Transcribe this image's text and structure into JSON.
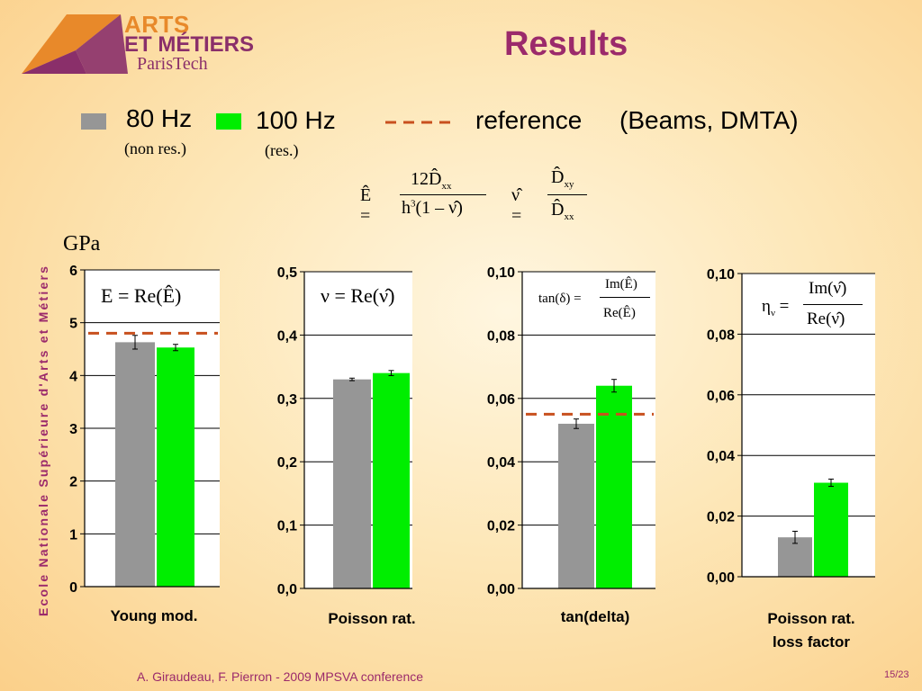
{
  "slide": {
    "title": "Results",
    "logo": {
      "line1": "ARTS",
      "line2": "ET MÉTIERS",
      "line3": "ParisTech"
    },
    "sidebar_text": "Ecole Nationale Supérieure d'Arts et Métiers",
    "footer": "A. Giraudeau, F. Pierron - 2009 MPSVA conference",
    "page_number": "15/23",
    "unit_label": "GPa"
  },
  "legend": {
    "series1_label": "80 Hz",
    "series1_sub": "(non res.)",
    "series2_label": "100 Hz",
    "series2_sub": "(res.)",
    "reference_label": "reference",
    "reference_note": "(Beams, DMTA)"
  },
  "colors": {
    "gray": "#969696",
    "green": "#00ee00",
    "reference": "#c8501e",
    "title": "#9b2a6b"
  },
  "chart_data": [
    {
      "type": "bar",
      "categories": [
        "Young mod."
      ],
      "series": [
        {
          "name": "80 Hz",
          "values": [
            4.63
          ],
          "error": [
            0.13
          ]
        },
        {
          "name": "100 Hz",
          "values": [
            4.53
          ],
          "error": [
            0.06
          ]
        }
      ],
      "reference": 4.8,
      "ylim": [
        0,
        6
      ],
      "ticks": [
        "0",
        "1",
        "2",
        "3",
        "4",
        "5",
        "6"
      ],
      "formula": "E = Re(Ê)"
    },
    {
      "type": "bar",
      "categories": [
        "Poisson rat."
      ],
      "series": [
        {
          "name": "80 Hz",
          "values": [
            0.33
          ],
          "error": [
            0.002
          ]
        },
        {
          "name": "100 Hz",
          "values": [
            0.34
          ],
          "error": [
            0.004
          ]
        }
      ],
      "ylim": [
        0,
        0.5
      ],
      "ticks": [
        "0,0",
        "0,1",
        "0,2",
        "0,3",
        "0,4",
        "0,5"
      ],
      "formula": "ν = Re(ν̂)"
    },
    {
      "type": "bar",
      "categories": [
        "tan(delta)"
      ],
      "series": [
        {
          "name": "80 Hz",
          "values": [
            0.052
          ],
          "error": [
            0.0015
          ]
        },
        {
          "name": "100 Hz",
          "values": [
            0.064
          ],
          "error": [
            0.002
          ]
        }
      ],
      "reference": 0.055,
      "ylim": [
        0,
        0.1
      ],
      "ticks": [
        "0,00",
        "0,02",
        "0,04",
        "0,06",
        "0,08",
        "0,10"
      ],
      "formula": "tan(δ) = Im(Ê) / Re(Ê)"
    },
    {
      "type": "bar",
      "categories": [
        "Poisson rat. loss factor"
      ],
      "series": [
        {
          "name": "80 Hz",
          "values": [
            0.013
          ],
          "error": [
            0.002
          ]
        },
        {
          "name": "100 Hz",
          "values": [
            0.031
          ],
          "error": [
            0.0012
          ]
        }
      ],
      "ylim": [
        0,
        0.1
      ],
      "ticks": [
        "0,00",
        "0,02",
        "0,04",
        "0,06",
        "0,08",
        "0,10"
      ],
      "formula": "ην = Im(ν̂) / Re(ν̂)"
    }
  ],
  "category_labels": [
    "Young mod.",
    "Poisson rat.",
    "tan(delta)",
    "Poisson rat.",
    "loss factor"
  ]
}
